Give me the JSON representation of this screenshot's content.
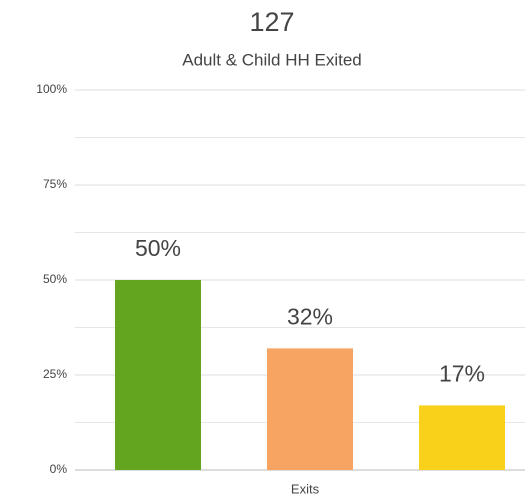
{
  "chart_data": {
    "type": "bar",
    "title": "127",
    "subtitle": "Adult & Child HH Exited",
    "categories": [
      "Exits"
    ],
    "series": [
      {
        "color": "#63a51f",
        "values": [
          50
        ],
        "value_labels": [
          "50%"
        ]
      },
      {
        "color": "#f7a462",
        "values": [
          32
        ],
        "value_labels": [
          "32%"
        ]
      },
      {
        "color": "#f9d01a",
        "values": [
          17
        ],
        "value_labels": [
          "17%"
        ]
      }
    ],
    "ylim": [
      0,
      100
    ],
    "yticks": [
      {
        "value": 0,
        "label": "0%"
      },
      {
        "value": 25,
        "label": "25%"
      },
      {
        "value": 50,
        "label": "50%"
      },
      {
        "value": 75,
        "label": "75%"
      },
      {
        "value": 100,
        "label": "100%"
      }
    ],
    "minor_yticks": [
      12.5,
      37.5,
      62.5,
      87.5
    ],
    "grid": true
  }
}
